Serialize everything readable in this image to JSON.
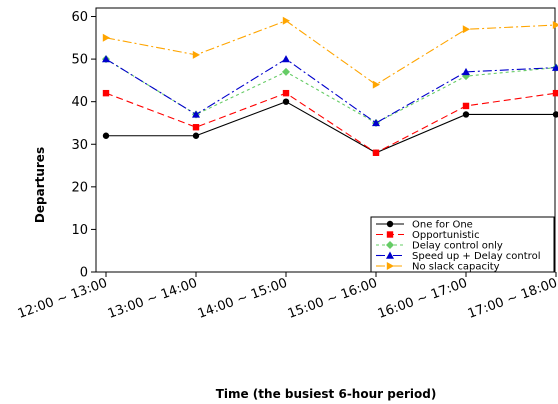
{
  "chart_data": {
    "type": "line",
    "title": "",
    "xlabel": "Time (the busiest 6-hour period)",
    "ylabel": "Departures",
    "categories": [
      "12:00 ~ 13:00",
      "13:00 ~ 14:00",
      "14:00 ~ 15:00",
      "15:00 ~ 16:00",
      "16:00 ~ 17:00",
      "17:00 ~ 18:00"
    ],
    "ylim": [
      0,
      62
    ],
    "yticks": [
      0,
      10,
      20,
      30,
      40,
      50,
      60
    ],
    "grid": false,
    "legend_position": "bottom-right",
    "series": [
      {
        "name": "One for One",
        "values": [
          32,
          32,
          40,
          28,
          37,
          37
        ],
        "color": "#000000",
        "marker": "circle",
        "dash": "solid"
      },
      {
        "name": "Opportunistic",
        "values": [
          42,
          34,
          42,
          28,
          39,
          42
        ],
        "color": "#ff0000",
        "marker": "square",
        "dash": "dash"
      },
      {
        "name": "Delay control only",
        "values": [
          50,
          37,
          47,
          35,
          46,
          48
        ],
        "color": "#66cc66",
        "marker": "diamond",
        "dash": "dot"
      },
      {
        "name": "Speed up + Delay control",
        "values": [
          50,
          37,
          50,
          35,
          47,
          48
        ],
        "color": "#0000cc",
        "marker": "triangle-up",
        "dash": "dashdot"
      },
      {
        "name": "No slack capacity",
        "values": [
          55,
          51,
          59,
          44,
          57,
          58
        ],
        "color": "#ffa500",
        "marker": "triangle-right",
        "dash": "dashdot"
      }
    ]
  }
}
